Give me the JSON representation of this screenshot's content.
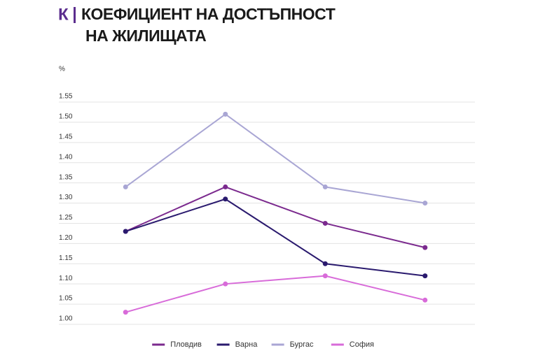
{
  "chart_data": {
    "type": "line",
    "logo": "К",
    "title": [
      "КОЕФИЦИЕНТ НА ДОСТЪПНОСТ",
      "НА ЖИЛИЩАТА"
    ],
    "y_label": "%",
    "categories": [
      null,
      null,
      null,
      null
    ],
    "series": [
      {
        "name": "Пловдив",
        "color": "#7b2a8e",
        "values": [
          1.23,
          1.34,
          1.25,
          1.19
        ]
      },
      {
        "name": "Варна",
        "color": "#2a1a6e",
        "values": [
          1.23,
          1.31,
          1.15,
          1.12
        ]
      },
      {
        "name": "Бургас",
        "color": "#a9a6d4",
        "values": [
          1.34,
          1.52,
          1.34,
          1.3
        ]
      },
      {
        "name": "София",
        "color": "#d86bd9",
        "values": [
          1.03,
          1.1,
          1.12,
          1.06
        ]
      }
    ],
    "ylim": [
      1.0,
      1.55
    ],
    "yticks": [
      {
        "value": 1.0,
        "label": "1.00"
      },
      1.05,
      {
        "value": 1.1,
        "label": "1.10"
      },
      1.15,
      {
        "value": 1.2,
        "label": "1.20"
      },
      1.25,
      {
        "value": 1.3,
        "label": "1.30"
      },
      1.35,
      {
        "value": 1.4,
        "label": "1.40"
      },
      1.45,
      {
        "value": 1.5,
        "label": "1.50"
      },
      1.55
    ],
    "grid": true,
    "legend": "bottom"
  }
}
